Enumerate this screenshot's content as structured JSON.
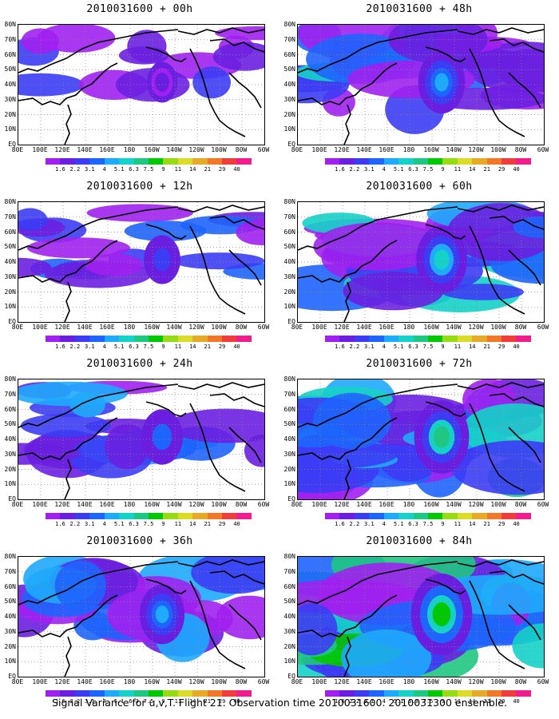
{
  "panels": [
    {
      "title": "2010031600 + 00h",
      "intensity": 0.15
    },
    {
      "title": "2010031600 + 48h",
      "intensity": 0.55
    },
    {
      "title": "2010031600 + 12h",
      "intensity": 0.3
    },
    {
      "title": "2010031600 + 60h",
      "intensity": 0.65
    },
    {
      "title": "2010031600 + 24h",
      "intensity": 0.42
    },
    {
      "title": "2010031600 + 72h",
      "intensity": 0.75
    },
    {
      "title": "2010031600 + 36h",
      "intensity": 0.5
    },
    {
      "title": "2010031600 + 84h",
      "intensity": 0.9
    }
  ],
  "lat_labels": [
    "80N",
    "70N",
    "60N",
    "50N",
    "40N",
    "30N",
    "20N",
    "10N",
    "EQ"
  ],
  "lon_labels": [
    "80E",
    "100E",
    "120E",
    "140E",
    "160E",
    "180",
    "160W",
    "140W",
    "120W",
    "100W",
    "80W",
    "60W"
  ],
  "colorbar": {
    "labels": [
      "1.6",
      "2.2",
      "3.1",
      "4",
      "5.1",
      "6.3",
      "7.5",
      "9",
      "11",
      "14",
      "21",
      "29",
      "40"
    ],
    "colors": [
      "#a020f0",
      "#6a1fe0",
      "#3c3cf5",
      "#1e64ff",
      "#1eaaff",
      "#14d2c8",
      "#1ec882",
      "#00c800",
      "#96dc14",
      "#dcdc28",
      "#e6aa28",
      "#f07828",
      "#f03c3c",
      "#f01e8c"
    ]
  },
  "caption": "Signal Variance for u,v,T. Flight 21. Observation time 2010031600. 2010031300 ensemble."
}
